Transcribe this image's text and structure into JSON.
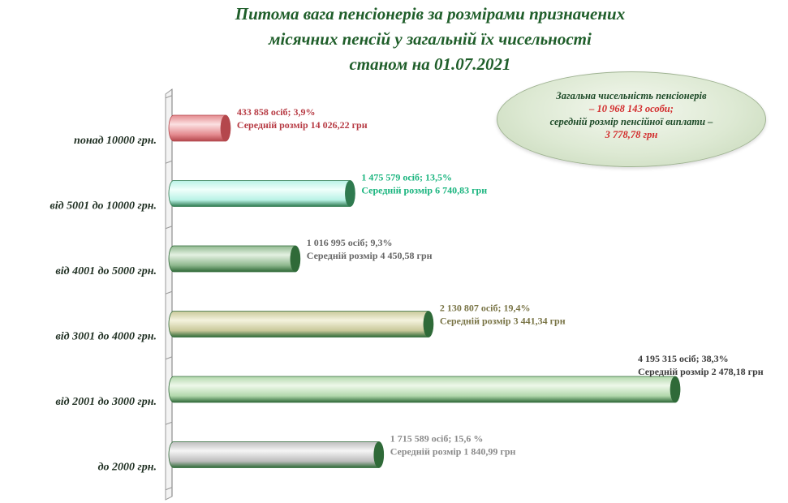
{
  "chart_data": {
    "type": "bar",
    "orientation": "horizontal",
    "title": [
      "Питома вага пенсіонерів за розмірами призначених",
      "місячних пенсій у загальній їх чисельності",
      "станом на 01.07.2021"
    ],
    "categories": [
      "понад 10000 грн.",
      "від 5001 до 10000 грн.",
      "від 4001 до 5000 грн.",
      "від 3001 до 4000 грн.",
      "від 2001 до 3000 грн.",
      "до 2000 грн."
    ],
    "values": [
      433858,
      1475579,
      1016995,
      2130807,
      4195315,
      1715589
    ],
    "percent": [
      3.9,
      13.5,
      9.3,
      19.4,
      38.3,
      15.6
    ],
    "data_labels": [
      {
        "line1": "433 858 осіб;  3,9%",
        "line2": "Середній  розмір  14 026,22 грн"
      },
      {
        "line1": "1 475 579 осіб; 13,5%",
        "line2": "Середній  розмір  6 740,83 грн"
      },
      {
        "line1": "1 016 995 осіб; 9,3%",
        "line2": "Середній  розмір  4 450,58 грн"
      },
      {
        "line1": "2 130 807 осіб; 19,4%",
        "line2": "Середній  розмір  3 441,34 грн"
      },
      {
        "line1": "4 195 315 осіб; 38,3%",
        "line2": "Середній  розмір  2 478,18 грн"
      },
      {
        "line1": "1 715 589 осіб; 15,6 %",
        "line2": "Середній  розмір  1 840,99 грн"
      }
    ],
    "colors": [
      {
        "fill": "#e48a8e",
        "light": "#fbe0e1",
        "end": "#b4474c",
        "label": "#b73b44"
      },
      {
        "fill": "#b9f2e6",
        "light": "#f0fffb",
        "end": "#2f7a4f",
        "label": "#1bb57f"
      },
      {
        "fill": "#8fb88e",
        "light": "#e4f1e2",
        "end": "#2f6a38",
        "label": "#666666"
      },
      {
        "fill": "#c9c89a",
        "light": "#f4f3de",
        "end": "#2f6a38",
        "label": "#7a7547"
      },
      {
        "fill": "#b2d8ac",
        "light": "#eef8ea",
        "end": "#2f6a38",
        "label": "#3a3a3a"
      },
      {
        "fill": "#bdbdbd",
        "light": "#f5f5f5",
        "end": "#2f6a38",
        "label": "#8a8a8a"
      }
    ],
    "xlim": [
      0,
      4250000
    ],
    "grid": false,
    "legend": "none"
  },
  "summary": {
    "line1": "Загальна чисельність пенсіонерів",
    "line2": "– 10 968 143 особи;",
    "line3": "середній розмір пенсійної виплати –",
    "line4": "3 778,78 грн"
  }
}
